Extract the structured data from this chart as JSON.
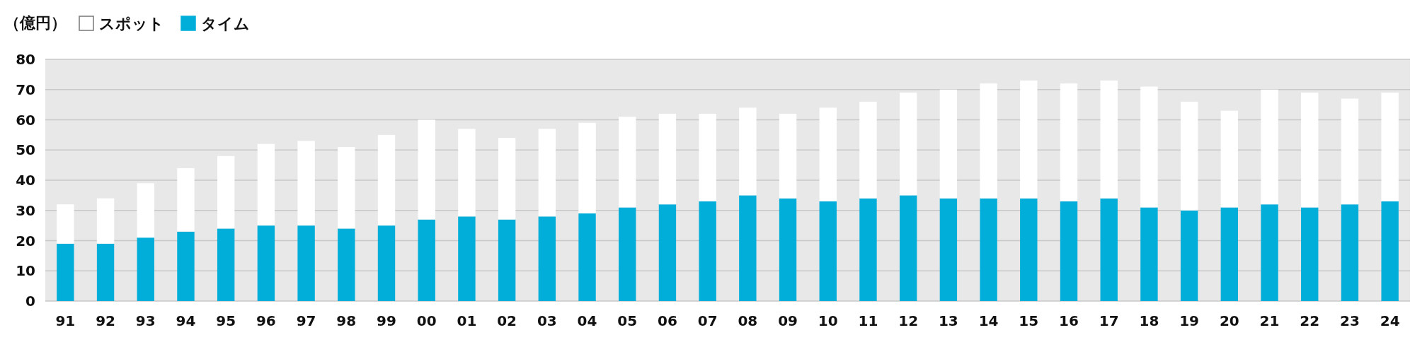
{
  "chart_data": {
    "type": "bar",
    "ylabel": "（億円）",
    "stacked": true,
    "legend": "top left",
    "grid": "y",
    "ylim": [
      0,
      80
    ],
    "yticks": [
      0,
      10,
      20,
      30,
      40,
      50,
      60,
      70,
      80
    ],
    "categories": [
      "91",
      "92",
      "93",
      "94",
      "95",
      "96",
      "97",
      "98",
      "99",
      "00",
      "01",
      "02",
      "03",
      "04",
      "05",
      "06",
      "07",
      "08",
      "09",
      "10",
      "11",
      "12",
      "13",
      "14",
      "15",
      "16",
      "17",
      "18",
      "19",
      "20",
      "21",
      "22",
      "23",
      "24"
    ],
    "series": [
      {
        "name": "タイム",
        "color": "#00aed9",
        "values": [
          19,
          19,
          21,
          23,
          24,
          25,
          25,
          24,
          25,
          27,
          28,
          27,
          28,
          29,
          31,
          32,
          33,
          35,
          34,
          33,
          34,
          35,
          34,
          34,
          34,
          33,
          34,
          31,
          30,
          31,
          32,
          31,
          32,
          33
        ]
      },
      {
        "name": "スポット",
        "color": "#ffffff",
        "values": [
          13,
          15,
          18,
          21,
          24,
          27,
          28,
          27,
          30,
          33,
          29,
          27,
          29,
          30,
          30,
          30,
          29,
          29,
          28,
          31,
          32,
          34,
          36,
          38,
          39,
          39,
          39,
          40,
          36,
          32,
          38,
          38,
          35,
          36
        ]
      }
    ]
  }
}
